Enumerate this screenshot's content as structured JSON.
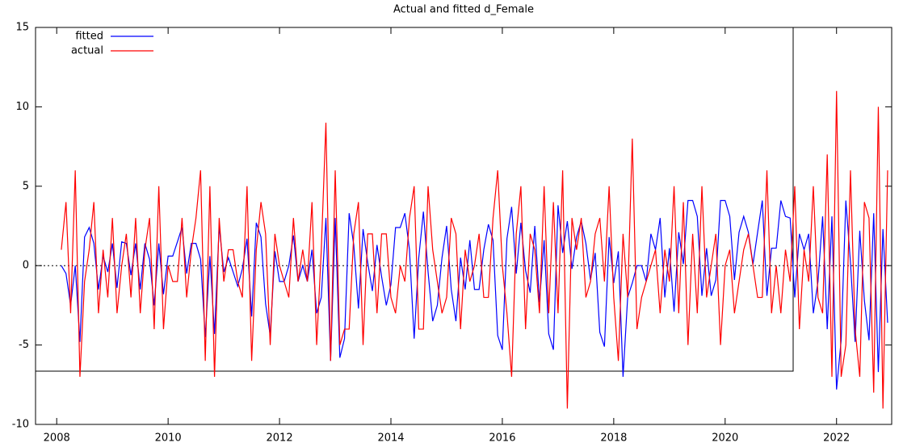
{
  "chart_data": {
    "type": "line",
    "title": "Actual and fitted d_Female",
    "xlim": [
      2007.62,
      2022.99
    ],
    "xticks": [
      2008,
      2010,
      2012,
      2014,
      2016,
      2018,
      2020,
      2022
    ],
    "ylim": [
      -10,
      15
    ],
    "yticks": [
      -10,
      -5,
      0,
      5,
      10,
      15
    ],
    "legend": "upper left",
    "zero_line": true,
    "x": [
      2008.083,
      2008.167,
      2008.25,
      2008.333,
      2008.417,
      2008.5,
      2008.583,
      2008.667,
      2008.75,
      2008.833,
      2008.917,
      2009.0,
      2009.083,
      2009.167,
      2009.25,
      2009.333,
      2009.417,
      2009.5,
      2009.583,
      2009.667,
      2009.75,
      2009.833,
      2009.917,
      2010.0,
      2010.083,
      2010.167,
      2010.25,
      2010.333,
      2010.417,
      2010.5,
      2010.583,
      2010.667,
      2010.75,
      2010.833,
      2010.917,
      2011.0,
      2011.083,
      2011.167,
      2011.25,
      2011.333,
      2011.417,
      2011.5,
      2011.583,
      2011.667,
      2011.75,
      2011.833,
      2011.917,
      2012.0,
      2012.083,
      2012.167,
      2012.25,
      2012.333,
      2012.417,
      2012.5,
      2012.583,
      2012.667,
      2012.75,
      2012.833,
      2012.917,
      2013.0,
      2013.083,
      2013.167,
      2013.25,
      2013.333,
      2013.417,
      2013.5,
      2013.583,
      2013.667,
      2013.75,
      2013.833,
      2013.917,
      2014.0,
      2014.083,
      2014.167,
      2014.25,
      2014.333,
      2014.417,
      2014.5,
      2014.583,
      2014.667,
      2014.75,
      2014.833,
      2014.917,
      2015.0,
      2015.083,
      2015.167,
      2015.25,
      2015.333,
      2015.417,
      2015.5,
      2015.583,
      2015.667,
      2015.75,
      2015.833,
      2015.917,
      2016.0,
      2016.083,
      2016.167,
      2016.25,
      2016.333,
      2016.417,
      2016.5,
      2016.583,
      2016.667,
      2016.75,
      2016.833,
      2016.917,
      2017.0,
      2017.083,
      2017.167,
      2017.25,
      2017.333,
      2017.417,
      2017.5,
      2017.583,
      2017.667,
      2017.75,
      2017.833,
      2017.917,
      2018.0,
      2018.083,
      2018.167,
      2018.25,
      2018.333,
      2018.417,
      2018.5,
      2018.583,
      2018.667,
      2018.75,
      2018.833,
      2018.917,
      2019.0,
      2019.083,
      2019.167,
      2019.25,
      2019.333,
      2019.417,
      2019.5,
      2019.583,
      2019.667,
      2019.75,
      2019.833,
      2019.917,
      2020.0,
      2020.083,
      2020.167,
      2020.25,
      2020.333,
      2020.417,
      2020.5,
      2020.583,
      2020.667,
      2020.75,
      2020.833,
      2020.917,
      2021.0,
      2021.083,
      2021.167,
      2021.25,
      2021.333,
      2021.417,
      2021.5,
      2021.583,
      2021.667,
      2021.75,
      2021.833,
      2021.917,
      2022.0,
      2022.083,
      2022.167,
      2022.25,
      2022.333,
      2022.417,
      2022.5,
      2022.583,
      2022.667,
      2022.75,
      2022.833,
      2022.917
    ],
    "series": [
      {
        "name": "fitted",
        "color": "#0000ff",
        "values": [
          0,
          -0.5,
          -2.5,
          0,
          -4.8,
          1.8,
          2.4,
          1.4,
          -1.5,
          0.6,
          -0.4,
          1.4,
          -1.4,
          1.5,
          1.4,
          -0.6,
          1.4,
          -1.5,
          1.4,
          0.4,
          -2.5,
          1.4,
          -1.8,
          0.6,
          0.6,
          1.5,
          2.4,
          -0.5,
          1.4,
          1.4,
          0.4,
          -4.5,
          0.6,
          -4.3,
          2.5,
          -0.4,
          0.5,
          -0.4,
          -1.3,
          -0.2,
          1.7,
          -3.2,
          2.7,
          1.8,
          -2.4,
          -4.4,
          0.9,
          -1.0,
          -1.0,
          0,
          1.9,
          -1.0,
          0,
          -1.0,
          1.0,
          -3.0,
          -2.0,
          3.0,
          -6.0,
          3.0,
          -5.8,
          -4.6,
          3.3,
          1.3,
          -2.7,
          2.3,
          0.2,
          -1.6,
          1.3,
          -0.7,
          -2.5,
          -1.2,
          2.4,
          2.4,
          3.3,
          1.0,
          -4.6,
          0.5,
          3.4,
          -0.4,
          -3.5,
          -2.5,
          0.5,
          2.5,
          -1.5,
          -3.5,
          0.5,
          -1.5,
          1.6,
          -1.5,
          -1.5,
          1.0,
          2.6,
          1.6,
          -4.4,
          -5.3,
          1.7,
          3.7,
          -0.5,
          2.7,
          -0.3,
          -1.7,
          2.5,
          -2.3,
          1.6,
          -4.3,
          -5.3,
          3.8,
          0.8,
          2.8,
          -0.2,
          1.8,
          2.8,
          1.4,
          -0.9,
          0.8,
          -4.2,
          -5.1,
          1.8,
          -1.1,
          0.9,
          -7.0,
          -2.0,
          -1.1,
          0,
          0,
          -1.0,
          2.0,
          1.0,
          3.0,
          -2.0,
          1.1,
          -2.9,
          2.1,
          0.1,
          4.1,
          4.1,
          3.1,
          -1.9,
          1.1,
          -1.9,
          -0.9,
          4.1,
          4.1,
          3.1,
          -0.9,
          2.1,
          3.1,
          2.1,
          0.1,
          2.1,
          4.1,
          -1.9,
          1.1,
          1.1,
          4.1,
          3.1,
          3.0,
          -2.0,
          2.0,
          1.0,
          2.0,
          -3.0,
          -1.0,
          3.1,
          -4.0,
          3.1,
          -7.8,
          -4.7,
          4.1,
          0.2,
          -4.8,
          2.2,
          -2.2,
          -4.7,
          3.3,
          -6.7,
          2.3,
          -3.6
        ]
      },
      {
        "name": "actual",
        "color": "#ff0000",
        "values": [
          1,
          4,
          -3,
          6,
          -7,
          -1,
          1,
          4,
          -3,
          1,
          -2,
          3,
          -3,
          0,
          2,
          -2,
          3,
          -3,
          1,
          3,
          -4,
          5,
          -4,
          0,
          -1,
          -1,
          3,
          -2,
          1,
          3,
          6,
          -6,
          5,
          -7,
          3,
          -1,
          1,
          1,
          -1,
          -2,
          5,
          -6,
          1,
          4,
          2,
          -5,
          2,
          0,
          -1,
          -2,
          3,
          -1,
          1,
          -1,
          4,
          -5,
          1,
          9,
          -6,
          6,
          -5,
          -4,
          -4,
          2,
          4,
          -5,
          2,
          2,
          -3,
          2,
          2,
          -2,
          -3,
          0,
          -1,
          3,
          5,
          -4,
          -4,
          5,
          1,
          -1,
          -3,
          -2,
          3,
          2,
          -4,
          1,
          -1,
          0,
          2,
          -2,
          -2,
          3,
          6,
          0,
          -3,
          -7,
          2,
          5,
          -4,
          2,
          1,
          -3,
          5,
          -3,
          4,
          -3,
          6,
          -9,
          3,
          1,
          3,
          -2,
          -1,
          2,
          3,
          -1,
          5,
          -2,
          -6,
          2,
          -2,
          8,
          -4,
          -2,
          -1,
          0,
          1,
          -3,
          1,
          -1,
          5,
          -3,
          4,
          -5,
          2,
          -3,
          5,
          -2,
          0,
          2,
          -5,
          0,
          1,
          -3,
          -1,
          1,
          2,
          0,
          -2,
          -2,
          6,
          -3,
          0,
          -3,
          1,
          -1,
          5,
          -4,
          1,
          -1,
          5,
          -2,
          -3,
          7,
          -7,
          11,
          -7,
          -5,
          6,
          -4,
          -7,
          4,
          3,
          -8,
          10,
          -9,
          6
        ]
      }
    ]
  }
}
